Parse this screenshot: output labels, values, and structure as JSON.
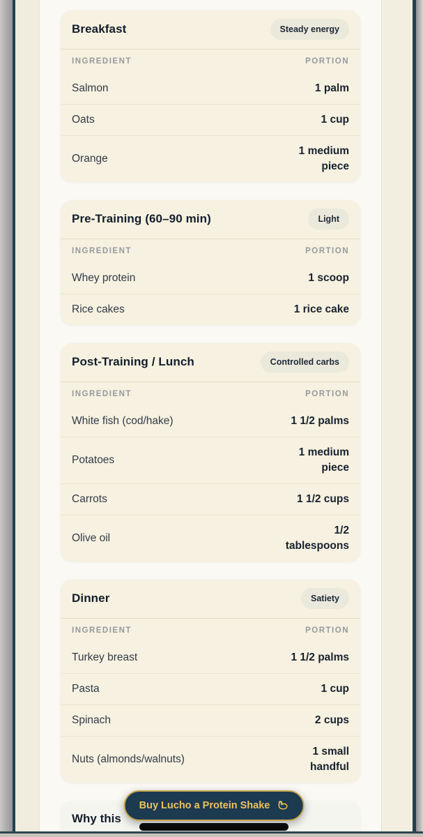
{
  "meals": [
    {
      "title": "Breakfast",
      "badge": "Steady energy",
      "rows": [
        {
          "ingredient": "Salmon",
          "portion": "1 palm"
        },
        {
          "ingredient": "Oats",
          "portion": "1 cup"
        },
        {
          "ingredient": "Orange",
          "portion": "1 medium piece"
        }
      ]
    },
    {
      "title": "Pre-Training (60–90 min)",
      "badge": "Light",
      "rows": [
        {
          "ingredient": "Whey protein",
          "portion": "1 scoop"
        },
        {
          "ingredient": "Rice cakes",
          "portion": "1 rice cake"
        }
      ]
    },
    {
      "title": "Post-Training / Lunch",
      "badge": "Controlled carbs",
      "rows": [
        {
          "ingredient": "White fish (cod/hake)",
          "portion": "1 1/2 palms"
        },
        {
          "ingredient": "Potatoes",
          "portion": "1 medium piece"
        },
        {
          "ingredient": "Carrots",
          "portion": "1 1/2 cups"
        },
        {
          "ingredient": "Olive oil",
          "portion": "1/2 tablespoons"
        }
      ]
    },
    {
      "title": "Dinner",
      "badge": "Satiety",
      "rows": [
        {
          "ingredient": "Turkey breast",
          "portion": "1 1/2 palms"
        },
        {
          "ingredient": "Pasta",
          "portion": "1 cup"
        },
        {
          "ingredient": "Spinach",
          "portion": "2 cups"
        },
        {
          "ingredient": "Nuts (almonds/walnuts)",
          "portion": "1 small handful"
        }
      ]
    }
  ],
  "table_headers": {
    "ingredient": "INGREDIENT",
    "portion": "PORTION"
  },
  "partial_section": {
    "title": "Why this"
  },
  "cta": {
    "label": "Buy Lucho a Protein Shake",
    "icon": "flexed-biceps",
    "icon_char": "💪"
  },
  "colors": {
    "card_bg": "#f6f1e0",
    "badge_bg": "#ebe9dc",
    "app_bg": "#faf9f4",
    "bezel_bg": "#f1edde",
    "frame_line": "#24414b",
    "title_text": "#131e2b",
    "muted_header": "#97999e",
    "button_bg": "#1c3a50",
    "button_border": "#c7a64f",
    "button_text": "#ecc25d",
    "home_indicator": "#0a0a0a"
  }
}
